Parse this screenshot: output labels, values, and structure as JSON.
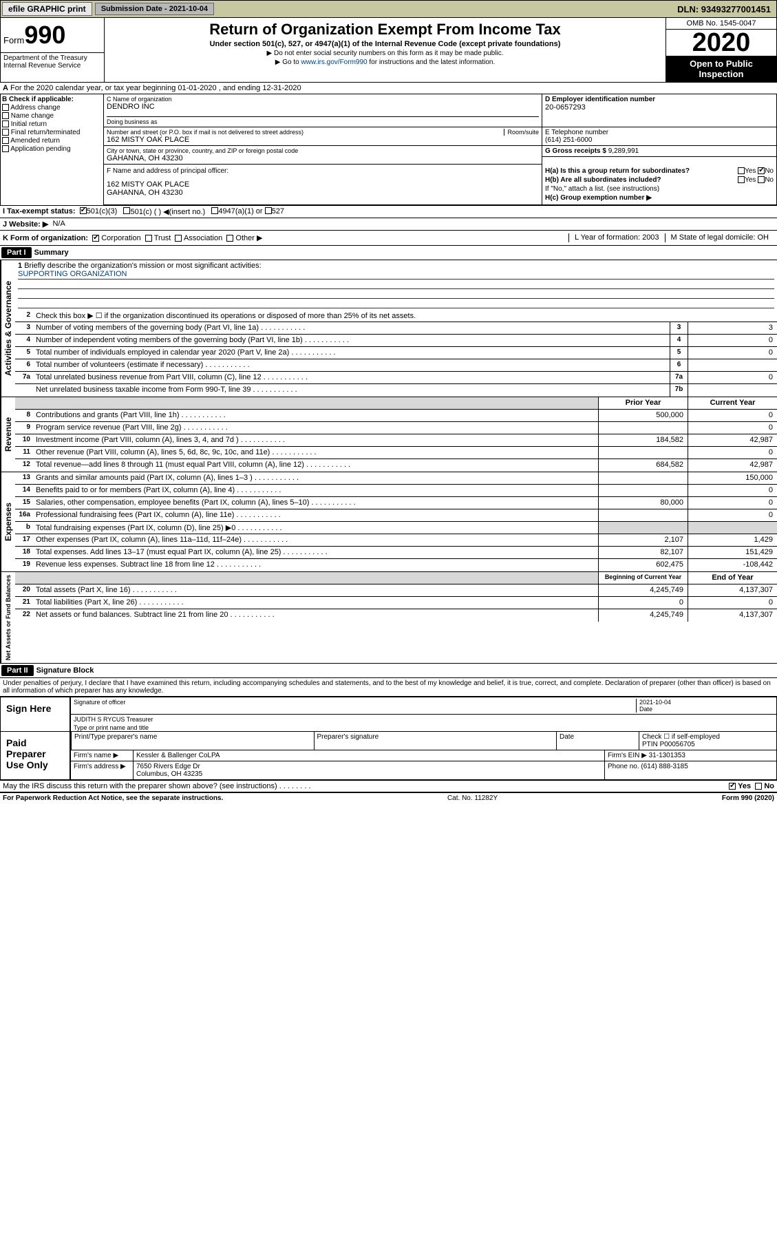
{
  "topbar": {
    "efile": "efile GRAPHIC print",
    "submission": "Submission Date - 2021-10-04",
    "dln": "DLN: 93493277001451"
  },
  "header": {
    "form_prefix": "Form",
    "form_num": "990",
    "title": "Return of Organization Exempt From Income Tax",
    "subtitle": "Under section 501(c), 527, or 4947(a)(1) of the Internal Revenue Code (except private foundations)",
    "note1": "▶ Do not enter social security numbers on this form as it may be made public.",
    "note2_pre": "▶ Go to ",
    "note2_link": "www.irs.gov/Form990",
    "note2_post": " for instructions and the latest information.",
    "dept": "Department of the Treasury\nInternal Revenue Service",
    "omb": "OMB No. 1545-0047",
    "year": "2020",
    "openpub": "Open to Public Inspection"
  },
  "period": "For the 2020 calendar year, or tax year beginning 01-01-2020     , and ending 12-31-2020",
  "boxB": {
    "label": "B Check if applicable:",
    "items": [
      "Address change",
      "Name change",
      "Initial return",
      "Final return/terminated",
      "Amended return",
      "Application pending"
    ]
  },
  "boxC": {
    "name_lbl": "C Name of organization",
    "name_val": "DENDRO INC",
    "dba_lbl": "Doing business as",
    "addr_lbl": "Number and street (or P.O. box if mail is not delivered to street address)",
    "room_lbl": "Room/suite",
    "addr_val": "162 MISTY OAK PLACE",
    "city_lbl": "City or town, state or province, country, and ZIP or foreign postal code",
    "city_val": "GAHANNA, OH  43230"
  },
  "boxD": {
    "lbl": "D Employer identification number",
    "val": "20-0657293"
  },
  "boxE": {
    "lbl": "E Telephone number",
    "val": "(614) 251-6000"
  },
  "boxG": {
    "lbl": "G Gross receipts $",
    "val": "9,289,991"
  },
  "boxF": {
    "lbl": "F  Name and address of principal officer:",
    "addr1": "162 MISTY OAK PLACE",
    "addr2": "GAHANNA, OH  43230"
  },
  "boxH": {
    "ha": "H(a)  Is this a group return for subordinates?",
    "hb": "H(b)  Are all subordinates included?",
    "hb_note": "If \"No,\" attach a list. (see instructions)",
    "hc": "H(c)  Group exemption number ▶",
    "yes": "Yes",
    "no": "No"
  },
  "rowI": {
    "lbl": "I     Tax-exempt status:",
    "o1": "501(c)(3)",
    "o2": "501(c) (  ) ◀(insert no.)",
    "o3": "4947(a)(1) or",
    "o4": "527"
  },
  "rowJ": {
    "lbl": "J    Website: ▶",
    "val": "N/A"
  },
  "rowK": {
    "lbl": "K Form of organization:",
    "o1": "Corporation",
    "o2": "Trust",
    "o3": "Association",
    "o4": "Other ▶",
    "L": "L Year of formation: 2003",
    "M": "M State of legal domicile: OH"
  },
  "part1": {
    "hdr": "Part I",
    "title": "Summary",
    "q1": "Briefly describe the organization's mission or most significant activities:",
    "q1_val": "SUPPORTING ORGANIZATION",
    "q2": "Check this box ▶ ☐  if the organization discontinued its operations or disposed of more than 25% of its net assets.",
    "rows": [
      {
        "n": "3",
        "d": "Number of voting members of the governing body (Part VI, line 1a)",
        "m": "3",
        "v": "3"
      },
      {
        "n": "4",
        "d": "Number of independent voting members of the governing body (Part VI, line 1b)",
        "m": "4",
        "v": "0"
      },
      {
        "n": "5",
        "d": "Total number of individuals employed in calendar year 2020 (Part V, line 2a)",
        "m": "5",
        "v": "0"
      },
      {
        "n": "6",
        "d": "Total number of volunteers (estimate if necessary)",
        "m": "6",
        "v": ""
      },
      {
        "n": "7a",
        "d": "Total unrelated business revenue from Part VIII, column (C), line 12",
        "m": "7a",
        "v": "0"
      },
      {
        "n": "",
        "d": "Net unrelated business taxable income from Form 990-T, line 39",
        "m": "7b",
        "v": ""
      }
    ],
    "col_hdr_prior": "Prior Year",
    "col_hdr_curr": "Current Year",
    "revenue": [
      {
        "n": "8",
        "d": "Contributions and grants (Part VIII, line 1h)",
        "p": "500,000",
        "c": "0"
      },
      {
        "n": "9",
        "d": "Program service revenue (Part VIII, line 2g)",
        "p": "",
        "c": "0"
      },
      {
        "n": "10",
        "d": "Investment income (Part VIII, column (A), lines 3, 4, and 7d )",
        "p": "184,582",
        "c": "42,987"
      },
      {
        "n": "11",
        "d": "Other revenue (Part VIII, column (A), lines 5, 6d, 8c, 9c, 10c, and 11e)",
        "p": "",
        "c": "0"
      },
      {
        "n": "12",
        "d": "Total revenue—add lines 8 through 11 (must equal Part VIII, column (A), line 12)",
        "p": "684,582",
        "c": "42,987"
      }
    ],
    "expenses": [
      {
        "n": "13",
        "d": "Grants and similar amounts paid (Part IX, column (A), lines 1–3 )",
        "p": "",
        "c": "150,000"
      },
      {
        "n": "14",
        "d": "Benefits paid to or for members (Part IX, column (A), line 4)",
        "p": "",
        "c": "0"
      },
      {
        "n": "15",
        "d": "Salaries, other compensation, employee benefits (Part IX, column (A), lines 5–10)",
        "p": "80,000",
        "c": "0"
      },
      {
        "n": "16a",
        "d": "Professional fundraising fees (Part IX, column (A), line 11e)",
        "p": "",
        "c": "0"
      },
      {
        "n": "b",
        "d": "Total fundraising expenses (Part IX, column (D), line 25) ▶0",
        "p": "shade",
        "c": "shade"
      },
      {
        "n": "17",
        "d": "Other expenses (Part IX, column (A), lines 11a–11d, 11f–24e)",
        "p": "2,107",
        "c": "1,429"
      },
      {
        "n": "18",
        "d": "Total expenses. Add lines 13–17 (must equal Part IX, column (A), line 25)",
        "p": "82,107",
        "c": "151,429"
      },
      {
        "n": "19",
        "d": "Revenue less expenses. Subtract line 18 from line 12",
        "p": "602,475",
        "c": "-108,442"
      }
    ],
    "net_hdr_beg": "Beginning of Current Year",
    "net_hdr_end": "End of Year",
    "net": [
      {
        "n": "20",
        "d": "Total assets (Part X, line 16)",
        "p": "4,245,749",
        "c": "4,137,307"
      },
      {
        "n": "21",
        "d": "Total liabilities (Part X, line 26)",
        "p": "0",
        "c": "0"
      },
      {
        "n": "22",
        "d": "Net assets or fund balances. Subtract line 21 from line 20",
        "p": "4,245,749",
        "c": "4,137,307"
      }
    ],
    "side_gov": "Activities & Governance",
    "side_rev": "Revenue",
    "side_exp": "Expenses",
    "side_net": "Net Assets or Fund Balances"
  },
  "part2": {
    "hdr": "Part II",
    "title": "Signature Block",
    "perjury": "Under penalties of perjury, I declare that I have examined this return, including accompanying schedules and statements, and to the best of my knowledge and belief, it is true, correct, and complete. Declaration of preparer (other than officer) is based on all information of which preparer has any knowledge.",
    "sign_here": "Sign Here",
    "sig_officer": "Signature of officer",
    "sig_date": "2021-10-04",
    "date_lbl": "Date",
    "name_title": "JUDITH S RYCUS  Treasurer",
    "type_name": "Type or print name and title",
    "paid": "Paid Preparer Use Only",
    "prep_name_lbl": "Print/Type preparer's name",
    "prep_sig_lbl": "Preparer's signature",
    "check_self": "Check ☐ if self-employed",
    "ptin_lbl": "PTIN",
    "ptin_val": "P00056705",
    "firm_name_lbl": "Firm's name    ▶",
    "firm_name": "Kessler & Ballenger CoLPA",
    "firm_ein_lbl": "Firm's EIN ▶",
    "firm_ein": "31-1301353",
    "firm_addr_lbl": "Firm's address ▶",
    "firm_addr": "7650 Rivers Edge Dr",
    "firm_city": "Columbus, OH  43235",
    "phone_lbl": "Phone no.",
    "phone": "(614) 888-3185",
    "discuss": "May the IRS discuss this return with the preparer shown above? (see instructions)",
    "yes": "Yes",
    "no": "No"
  },
  "footer": {
    "left": "For Paperwork Reduction Act Notice, see the separate instructions.",
    "center": "Cat. No. 11282Y",
    "right": "Form 990 (2020)"
  }
}
